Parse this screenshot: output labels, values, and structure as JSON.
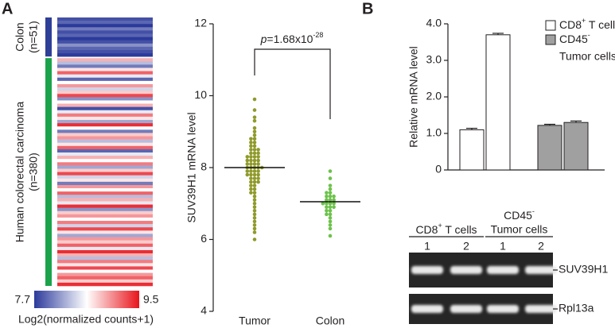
{
  "chart_data": [
    {
      "type": "heatmap",
      "panel_label": "A",
      "groups": [
        {
          "label": "Colon",
          "n_label": "(n=51)",
          "color": "#2e3f97",
          "values": [
            7.8,
            7.9,
            7.7,
            8.0,
            7.8,
            7.9,
            7.7,
            7.8,
            8.1,
            7.9,
            7.8,
            7.7
          ]
        },
        {
          "label": "Human colorectal carcinoma",
          "n_label": "(n=380)",
          "color": "#1aa34a",
          "values": [
            8.9,
            8.3,
            8.0,
            8.7,
            9.2,
            8.5,
            7.9,
            8.6,
            9.0,
            8.4,
            8.8,
            9.3,
            8.1,
            8.6,
            8.9,
            7.8,
            8.5,
            9.1,
            8.7,
            8.2,
            9.4,
            8.6,
            8.0,
            8.8,
            9.0,
            8.3,
            8.7,
            9.2,
            7.9,
            8.5,
            8.9,
            8.6,
            9.1,
            8.2,
            8.8,
            9.3,
            8.4,
            8.7,
            8.0,
            9.0,
            8.6,
            9.2,
            8.3,
            8.9,
            8.5,
            9.4,
            8.1,
            8.8,
            9.0,
            8.6,
            9.1,
            8.4,
            9.3,
            8.7,
            8.2,
            9.0,
            8.8,
            9.2,
            8.5,
            9.4,
            8.9,
            8.3,
            9.1,
            8.7,
            9.3,
            8.6,
            9.0,
            9.2,
            8.8,
            9.4
          ]
        }
      ],
      "clim": [
        7.7,
        9.5
      ],
      "colors": [
        "#2b3a9b",
        "#ffffff",
        "#e8141b"
      ],
      "colorbar_label": "Log2(normalized counts+1)"
    },
    {
      "type": "scatter",
      "ylabel": "SUV39H1 mRNA level",
      "categories": [
        "Tumor",
        "Colon"
      ],
      "ylim": [
        4,
        12
      ],
      "yticks": [
        4,
        6,
        8,
        10,
        12
      ],
      "annotation": {
        "italic": "p",
        "text": "=1.68x10",
        "superscript": "-28"
      },
      "series": [
        {
          "color": "#8f9a2a",
          "median": 8.0,
          "values": [
            9.9,
            9.6,
            9.4,
            9.3,
            9.1,
            9.0,
            8.9,
            8.8,
            8.8,
            8.7,
            8.7,
            8.6,
            8.6,
            8.5,
            8.5,
            8.5,
            8.4,
            8.4,
            8.4,
            8.3,
            8.3,
            8.3,
            8.3,
            8.2,
            8.2,
            8.2,
            8.2,
            8.1,
            8.1,
            8.1,
            8.1,
            8.0,
            8.0,
            8.0,
            8.0,
            8.0,
            7.9,
            7.9,
            7.9,
            7.9,
            7.8,
            7.8,
            7.8,
            7.8,
            7.7,
            7.7,
            7.7,
            7.6,
            7.6,
            7.6,
            7.5,
            7.5,
            7.4,
            7.4,
            7.3,
            7.3,
            7.2,
            7.1,
            7.0,
            6.9,
            6.8,
            6.7,
            6.6,
            6.5,
            6.4,
            6.3,
            6.2,
            6.0
          ]
        },
        {
          "color": "#6cc24a",
          "median": 7.05,
          "values": [
            7.9,
            7.7,
            7.5,
            7.4,
            7.3,
            7.3,
            7.2,
            7.2,
            7.2,
            7.1,
            7.1,
            7.1,
            7.0,
            7.0,
            7.0,
            7.0,
            6.9,
            6.9,
            6.9,
            6.8,
            6.8,
            6.7,
            6.7,
            6.6,
            6.5,
            6.4,
            6.3,
            6.1
          ]
        }
      ]
    },
    {
      "type": "bar",
      "panel_label": "B",
      "ylabel": "Relative mRNA level",
      "ylim": [
        0,
        4
      ],
      "yticks": [
        0,
        {
          "value": 1,
          "label": "1.0"
        },
        {
          "value": 2,
          "label": "2.0"
        },
        {
          "value": 3,
          "label": "3.0"
        },
        {
          "value": 4,
          "label": "4.0"
        }
      ],
      "categories": [
        null,
        null
      ],
      "series": [
        {
          "name_parts": [
            "CD8",
            "+",
            " T cells"
          ],
          "color": "#ffffff",
          "values": [
            1.1,
            3.7
          ],
          "errors": [
            0.04,
            0.04
          ]
        },
        {
          "name_parts": [
            "CD45",
            "-",
            "Tumor cells"
          ],
          "color": "#a0a0a0",
          "values": [
            1.22,
            1.3
          ],
          "errors": [
            0.03,
            0.04
          ]
        }
      ]
    },
    {
      "type": "gel",
      "column_groups": [
        {
          "label_parts": [
            "CD8",
            "+",
            " T cells"
          ]
        },
        {
          "label_parts": [
            "CD45",
            "-",
            "Tumor cells"
          ]
        }
      ],
      "lanes": [
        "1",
        "2",
        "1",
        "2"
      ],
      "rows": [
        "SUV39H1",
        "Rpl13a"
      ]
    }
  ]
}
